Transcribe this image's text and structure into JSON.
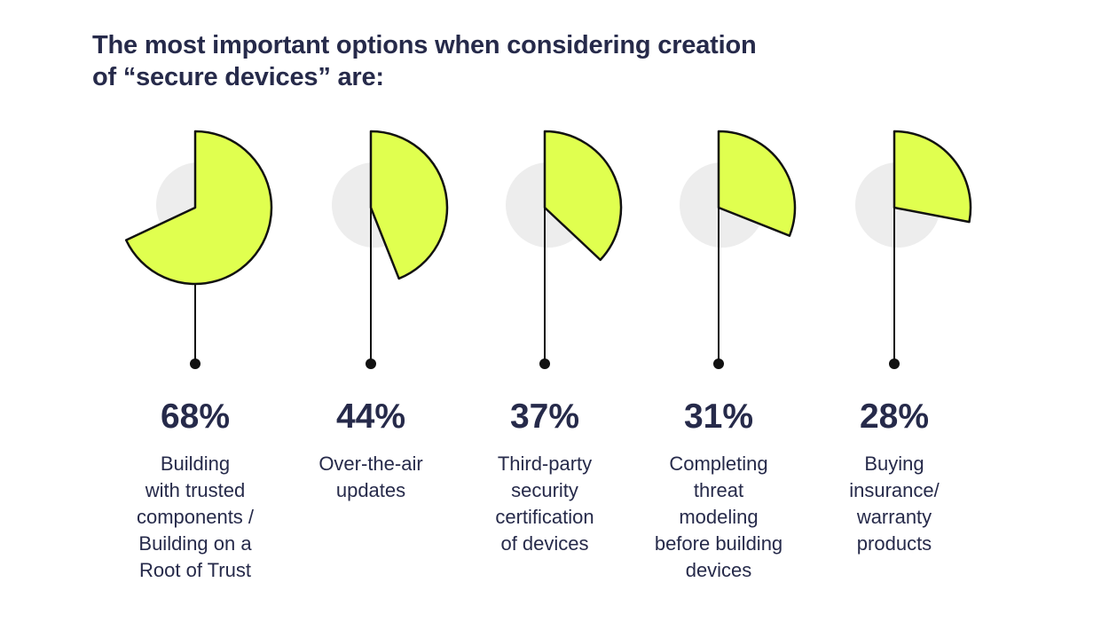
{
  "title_lines": [
    "The most important options when considering creation",
    "of “secure devices” are:"
  ],
  "colors": {
    "wedge_fill": "#e0ff4f",
    "wedge_stroke": "#111111",
    "background_disc": "#ededed",
    "text": "#262a4a"
  },
  "chart_data": {
    "type": "pie",
    "title": "The most important options when considering creation of “secure devices” are:",
    "unit": "%",
    "categories": [
      "Building with trusted components / Building on a Root of Trust",
      "Over-the-air updates",
      "Third-party security certification of devices",
      "Completing threat modeling before building devices",
      "Buying insurance/ warranty products"
    ],
    "values": [
      68,
      44,
      37,
      31,
      28
    ],
    "labels": [
      "68%",
      "44%",
      "37%",
      "31%",
      "28%"
    ],
    "description_lines": [
      [
        "Building",
        "with trusted",
        "components /",
        "Building on a",
        "Root of Trust"
      ],
      [
        "Over-the-air",
        "updates"
      ],
      [
        "Third-party",
        "security",
        "certification",
        "of devices"
      ],
      [
        "Completing",
        "threat",
        "modeling",
        "before building",
        "devices"
      ],
      [
        "Buying",
        "insurance/",
        "warranty",
        "products"
      ]
    ],
    "max": 100
  }
}
